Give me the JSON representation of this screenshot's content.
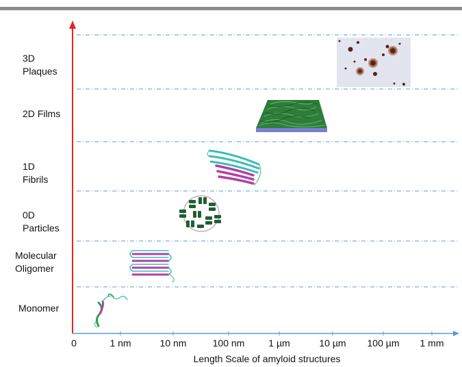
{
  "rows": [
    {
      "id": "plaques",
      "lines": [
        "3D",
        "Plaques"
      ]
    },
    {
      "id": "films",
      "lines": [
        "2D Films"
      ]
    },
    {
      "id": "fibrils",
      "lines": [
        "1D",
        "Fibrils"
      ]
    },
    {
      "id": "particles",
      "lines": [
        "0D",
        "Particles"
      ]
    },
    {
      "id": "oligomer",
      "lines": [
        "Molecular",
        "Oligomer"
      ]
    },
    {
      "id": "monomer",
      "lines": [
        "Monomer"
      ]
    }
  ],
  "x_axis": {
    "origin_label": "0",
    "ticks": [
      "1 nm",
      "10 nm",
      "100 nm",
      "1 µm",
      "10 µm",
      "100 µm",
      "1 mm"
    ],
    "title": "Length Scale of amyloid structures"
  },
  "colors": {
    "y_axis": "#e8231d",
    "x_axis": "#5b9bd5",
    "row_divider": "#5b9bd5",
    "cyan_strand": "#3bbdb5",
    "magenta_strand": "#b040a8",
    "green_strand": "#1f7a3c",
    "film_base": "#7b7fd0",
    "film_fibers": "#2e7d3a"
  }
}
